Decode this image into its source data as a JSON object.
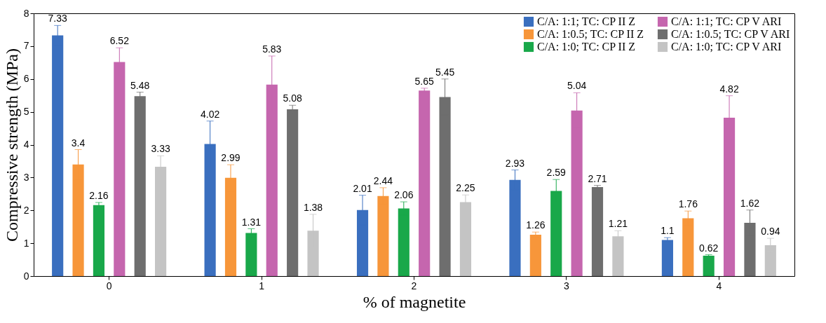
{
  "chart_data": {
    "type": "bar",
    "xlabel": "% of magnetite",
    "ylabel": "Compressive strength (MPa)",
    "categories": [
      "0",
      "1",
      "2",
      "3",
      "4"
    ],
    "ylim": [
      0,
      8
    ],
    "yticks": [
      0,
      1,
      2,
      3,
      4,
      5,
      6,
      7,
      8
    ],
    "grid": false,
    "legend": "top right",
    "data_labels": true,
    "series": [
      {
        "name": "C/A: 1:1; TC: CP II Z",
        "color": "#3a6fbf",
        "values": [
          7.33,
          4.02,
          2.01,
          2.93,
          1.1
        ],
        "errors": [
          0.3,
          0.7,
          0.45,
          0.3,
          0.07
        ]
      },
      {
        "name": "C/A: 1:0.5; TC: CP II Z",
        "color": "#f7963a",
        "values": [
          3.4,
          2.99,
          2.44,
          1.26,
          1.76
        ],
        "errors": [
          0.45,
          0.4,
          0.25,
          0.08,
          0.22
        ]
      },
      {
        "name": "C/A: 1:0; TC: CP II Z",
        "color": "#19a84a",
        "values": [
          2.16,
          1.31,
          2.06,
          2.59,
          0.62
        ],
        "errors": [
          0.08,
          0.13,
          0.2,
          0.35,
          0.03
        ]
      },
      {
        "name": "C/A: 1:1; TC: CP V ARI",
        "color": "#c566ae",
        "values": [
          6.52,
          5.83,
          5.65,
          5.04,
          4.82
        ],
        "errors": [
          0.43,
          0.87,
          0.07,
          0.54,
          0.67
        ]
      },
      {
        "name": "C/A: 1:0.5; TC: CP V ARI",
        "color": "#6e6e6e",
        "values": [
          5.48,
          5.08,
          5.45,
          2.71,
          1.62
        ],
        "errors": [
          0.12,
          0.12,
          0.55,
          0.05,
          0.39
        ]
      },
      {
        "name": "C/A: 1:0; TC: CP V ARI",
        "color": "#c4c4c4",
        "values": [
          3.33,
          1.38,
          2.25,
          1.21,
          0.94
        ],
        "errors": [
          0.33,
          0.5,
          0.22,
          0.17,
          0.21
        ]
      }
    ]
  }
}
